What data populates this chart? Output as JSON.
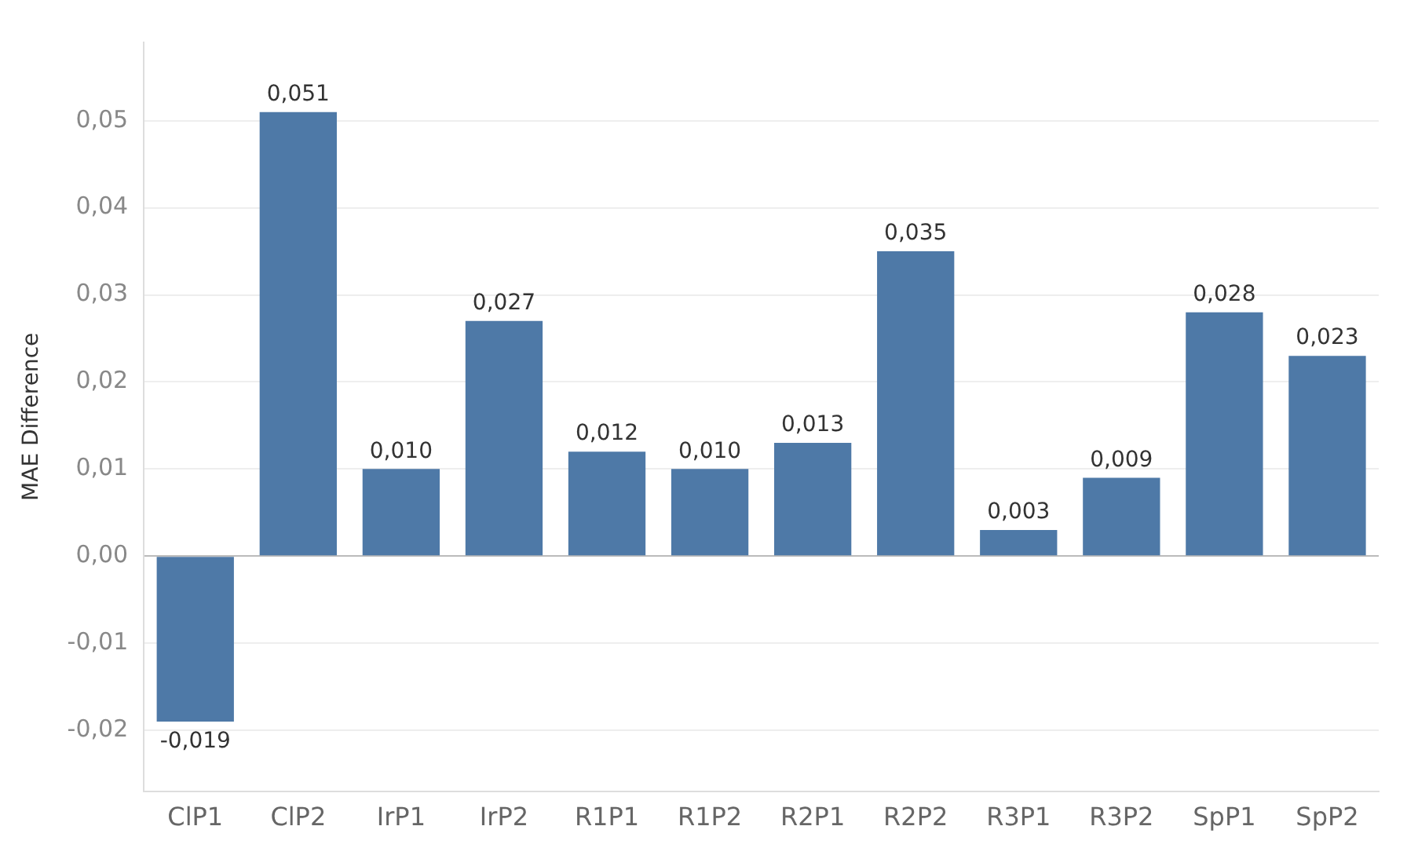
{
  "chart_data": {
    "type": "bar",
    "ylabel": "MAE Difference",
    "categories": [
      "ClP1",
      "ClP2",
      "IrP1",
      "IrP2",
      "R1P1",
      "R1P2",
      "R2P1",
      "R2P2",
      "R3P1",
      "R3P2",
      "SpP1",
      "SpP2"
    ],
    "values": [
      -0.019,
      0.051,
      0.01,
      0.027,
      0.012,
      0.01,
      0.013,
      0.035,
      0.003,
      0.009,
      0.028,
      0.023
    ],
    "value_labels": [
      "-0,019",
      "0,051",
      "0,010",
      "0,027",
      "0,012",
      "0,010",
      "0,013",
      "0,035",
      "0,003",
      "0,009",
      "0,028",
      "0,023"
    ],
    "color": "#4e79a7",
    "ylim": [
      -0.027,
      0.059
    ],
    "yticks": [
      {
        "value": -0.02,
        "label": "-0,02"
      },
      {
        "value": -0.01,
        "label": "-0,01"
      },
      {
        "value": 0,
        "label": "0,00"
      },
      {
        "value": 0.01,
        "label": "0,01"
      },
      {
        "value": 0.02,
        "label": "0,02"
      },
      {
        "value": 0.03,
        "label": "0,03"
      },
      {
        "value": 0.04,
        "label": "0,04"
      },
      {
        "value": 0.05,
        "label": "0,05"
      }
    ],
    "grid": "y",
    "legend": false
  }
}
